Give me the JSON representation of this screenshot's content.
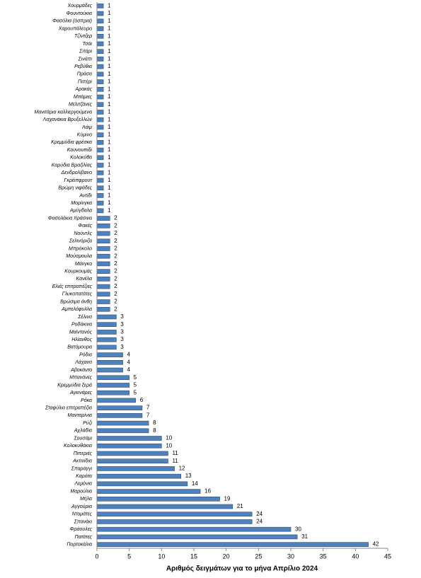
{
  "chart_data": {
    "type": "bar",
    "orientation": "horizontal",
    "x_label": "Αριθμός δειγμάτων για το μήνα Απρίλιο 2024",
    "categories": [
      "Χουρμάδες",
      "Φουντούκια",
      "Φασόλια (όσπρια)",
      "Χαρουπάλευρο",
      "Τζίντζερ",
      "Τσάι",
      "Σιτάρι",
      "Σινάπι",
      "Ρεβύθια",
      "Πράσα",
      "Πιπέρι",
      "Αρακάς",
      "Μπάμιες",
      "Μελιτζάνες",
      "Μανιτάρια καλλιεργούμενα",
      "Λαχανάκια Βρυξελλών",
      "Λάιμ",
      "Κύμινο",
      "Κρεμμύδια φρέσκα",
      "Κουνουπίδι",
      "Κολοκύθα",
      "Καρύδια Βραζιλίας",
      "Δενδρολίβανο",
      "Γκρέιπφρουτ",
      "Βρώμη νιφάδες",
      "Αντίδι",
      "Μορίνγκα",
      "Αμύγδαλα",
      "Φασολάκια πράσινα",
      "Φακές",
      "Νούντλς",
      "Σελινόριζα",
      "Μπρόκολο",
      "Μούσμουλα",
      "Μάνγκο",
      "Κουρκουμάς",
      "Κανέλα",
      "Ελιές επιτραπέζιες",
      "Γλυκοπατάτες",
      "Βρώσιμα άνθη",
      "Αμπελόφυλλα",
      "Σέλινο",
      "Ροδάκινα",
      "Μαϊντανός",
      "Ηλίανθος",
      "Βατόμουρα",
      "Ρόδια",
      "Λάχανο",
      "Αβοκάντο",
      "Μπανάνες",
      "Κρεμμύδια ξερά",
      "Αγκινάρες",
      "Ρόκα",
      "Σταφύλια επιτραπέζια",
      "Μανταρίνια",
      "Ρύζι",
      "Αχλάδια",
      "Σουσάμι",
      "Κολοκυθάκια",
      "Πιπεριές",
      "Ακτινίδια",
      "Σπαράγγι",
      "Καρότα",
      "Λεμόνια",
      "Μαρούλια",
      "Μήλα",
      "Αγγούρια",
      "Ντομάτες",
      "Σπανάκι",
      "Φράουλες",
      "Πατάτες",
      "Πορτοκάλια"
    ],
    "values": [
      1,
      1,
      1,
      1,
      1,
      1,
      1,
      1,
      1,
      1,
      1,
      1,
      1,
      1,
      1,
      1,
      1,
      1,
      1,
      1,
      1,
      1,
      1,
      1,
      1,
      1,
      1,
      1,
      2,
      2,
      2,
      2,
      2,
      2,
      2,
      2,
      2,
      2,
      2,
      2,
      2,
      3,
      3,
      3,
      3,
      3,
      4,
      4,
      4,
      5,
      5,
      5,
      6,
      7,
      7,
      8,
      8,
      10,
      10,
      11,
      11,
      12,
      13,
      14,
      16,
      19,
      21,
      24,
      24,
      30,
      31,
      42
    ],
    "color": "#4f81bd",
    "xlim": [
      0,
      45
    ],
    "xticks": [
      0,
      5,
      10,
      15,
      20,
      25,
      30,
      35,
      40,
      45
    ]
  }
}
